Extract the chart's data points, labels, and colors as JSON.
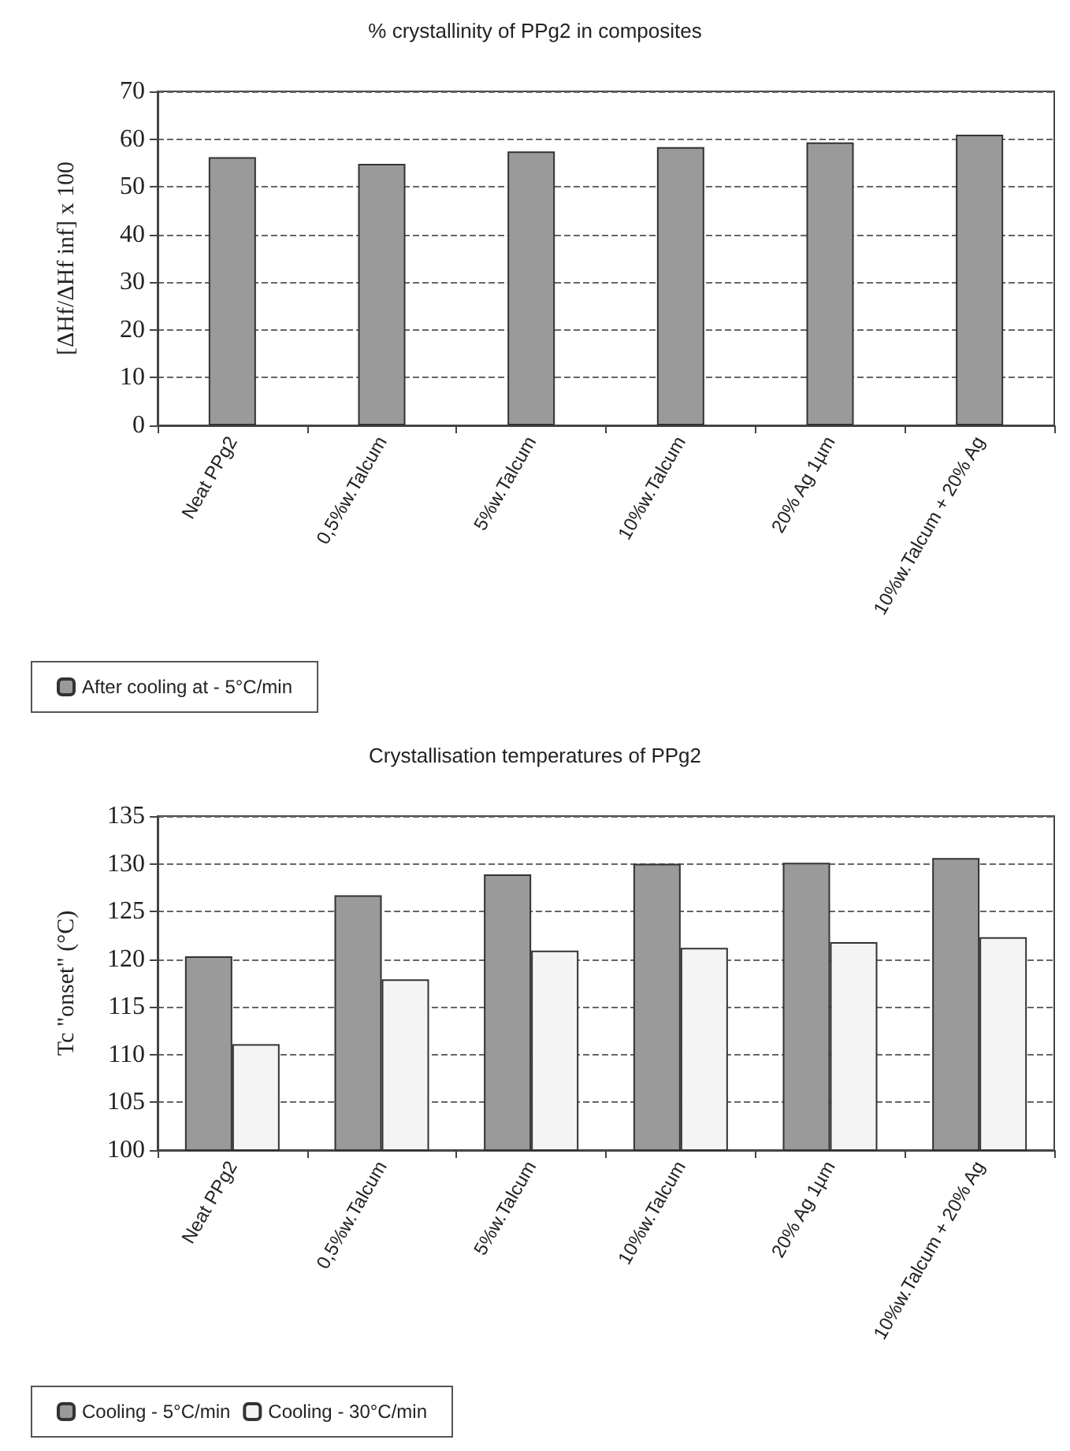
{
  "chart_data": [
    {
      "type": "bar",
      "title": "% crystallinity of PPg2 in composites",
      "ylabel": "[ΔHf/ΔHf inf] x 100",
      "categories": [
        "Neat PPg2",
        "0,5%w.Talcum",
        "5%w.Talcum",
        "10%w.Talcum",
        "20% Ag 1µm",
        "10%w.Talcum + 20% Ag"
      ],
      "series": [
        {
          "name": "After cooling at - 5°C/min",
          "color": "#9a9a9a",
          "values": [
            56.2,
            54.8,
            57.4,
            58.3,
            59.3,
            60.9
          ]
        }
      ],
      "ylim": [
        0,
        70
      ],
      "yticks": [
        0,
        10,
        20,
        30,
        40,
        50,
        60,
        70
      ],
      "grid": "y",
      "legend": "bottom left"
    },
    {
      "type": "bar",
      "title": "Crystallisation temperatures of PPg2",
      "ylabel": "Tc \"onset\" (°C)",
      "categories": [
        "Neat PPg2",
        "0,5%w.Talcum",
        "5%w.Talcum",
        "10%w.Talcum",
        "20% Ag 1µm",
        "10%w.Talcum + 20% Ag"
      ],
      "series": [
        {
          "name": "Cooling - 5°C/min",
          "color": "#9a9a9a",
          "values": [
            120.3,
            126.7,
            128.9,
            130.0,
            130.1,
            130.6
          ]
        },
        {
          "name": "Cooling - 30°C/min",
          "color": "#f4f4f4",
          "values": [
            111.1,
            117.9,
            120.9,
            121.2,
            121.8,
            122.3
          ]
        }
      ],
      "ylim": [
        100,
        135
      ],
      "yticks": [
        100,
        105,
        110,
        115,
        120,
        125,
        130,
        135
      ],
      "grid": "y",
      "legend": "bottom left"
    }
  ]
}
